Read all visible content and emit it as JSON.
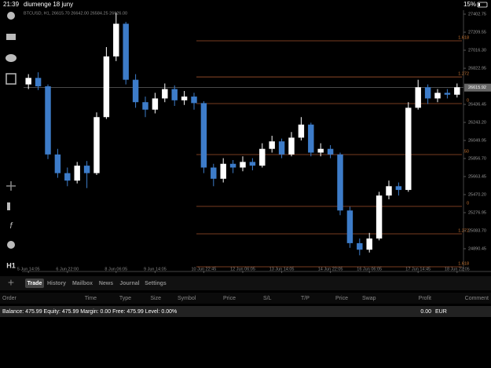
{
  "status_bar": {
    "time": "21:39",
    "date": "diumenge 18 juny",
    "battery": "15%"
  },
  "toolbar": {
    "timeframe": "H1"
  },
  "chart_data": {
    "type": "candlestick",
    "title": "BTCUSD, H1, 26615.70 26642.00 26584.25 26626.00",
    "ylim": [
      24655,
      27445
    ],
    "yticks": [
      27402.75,
      27209.55,
      {
        "value": 27016.3,
        "label": "27016.30"
      },
      26822.95,
      26436.45,
      {
        "value": 26243.2,
        "label": "26243.20"
      },
      26049.95,
      {
        "value": 25856.7,
        "label": "25856.70"
      },
      25663.45,
      {
        "value": 25470.2,
        "label": "25470.20"
      },
      25276.95,
      {
        "value": 25083.7,
        "label": "25083.70"
      },
      24890.45
    ],
    "current_price": 26615.92,
    "categories": [
      "5 Jun 14:05",
      null,
      null,
      null,
      "6 Jun 22:00",
      null,
      null,
      null,
      null,
      "8 Jun 06:05",
      null,
      null,
      null,
      "9 Jun 14:05",
      null,
      null,
      null,
      null,
      "10 Jun 22:45",
      null,
      null,
      null,
      "12 Jun 06:05",
      null,
      null,
      null,
      "13 Jun 14:05",
      null,
      null,
      null,
      null,
      "14 Jun 22:05",
      null,
      null,
      null,
      "16 Jun 06:05",
      null,
      null,
      null,
      null,
      "17 Jun 14:45",
      null,
      null,
      null,
      "18 Jun 22:05"
    ],
    "open": [
      26650,
      26720,
      26630,
      25900,
      25700,
      25620,
      25780,
      25700,
      26300,
      26950,
      27300,
      26700,
      26460,
      26380,
      26500,
      26600,
      26480,
      26520,
      26450,
      25760,
      25640,
      25800,
      25760,
      25820,
      25780,
      25960,
      26040,
      25900,
      26080,
      26220,
      25920,
      25960,
      25900,
      25300,
      24950,
      24880,
      25000,
      25460,
      25560,
      25520,
      26400,
      26620,
      26500,
      26560,
      26540
    ],
    "high": [
      26760,
      26780,
      26650,
      25960,
      25760,
      25820,
      25830,
      26350,
      27050,
      27420,
      27320,
      26760,
      26520,
      26560,
      26660,
      26640,
      26580,
      26560,
      26470,
      25800,
      25860,
      25840,
      25880,
      25860,
      26020,
      26100,
      26070,
      26140,
      26300,
      26240,
      26020,
      26000,
      25920,
      25340,
      25000,
      25060,
      25500,
      25620,
      25600,
      26460,
      26700,
      26650,
      26600,
      26600,
      26660
    ],
    "low": [
      26600,
      26590,
      25850,
      25650,
      25560,
      25590,
      25540,
      25680,
      26280,
      26900,
      26650,
      26400,
      26300,
      26340,
      26460,
      26420,
      26430,
      26380,
      25700,
      25560,
      25600,
      25700,
      25720,
      25730,
      25760,
      25920,
      25860,
      25880,
      26050,
      25880,
      25880,
      25860,
      25250,
      24900,
      24820,
      24850,
      24980,
      25420,
      25460,
      25500,
      26380,
      26440,
      26460,
      26500,
      26510
    ],
    "close": [
      26720,
      26630,
      25900,
      25700,
      25620,
      25780,
      25700,
      26300,
      26950,
      27300,
      26700,
      26460,
      26380,
      26500,
      26600,
      26480,
      26520,
      26450,
      25760,
      25640,
      25800,
      25760,
      25820,
      25780,
      25960,
      26040,
      25900,
      26080,
      26220,
      25920,
      25960,
      25900,
      25300,
      24950,
      24880,
      25000,
      25460,
      25560,
      25520,
      26400,
      26620,
      26500,
      26560,
      26540,
      26620
    ],
    "fib_levels": [
      {
        "label": "1.618",
        "price": 27117
      },
      {
        "label": "1.272",
        "price": 26730
      },
      {
        "label": "0",
        "price": 26445
      },
      {
        "label": ".50",
        "price": 25899
      },
      {
        "label": "0",
        "price": 25344
      },
      {
        "label": "1.272",
        "price": 25050
      },
      {
        "label": "1.618",
        "price": 24697
      }
    ],
    "bull_color": "#ffffff",
    "bear_color": "#3d7cc9",
    "fib_color": "#a0522d",
    "grid": false
  },
  "tabs": [
    "Trade",
    "History",
    "Mailbox",
    "News",
    "Journal",
    "Settings"
  ],
  "active_tab": "Trade",
  "table": {
    "headers": [
      "Order",
      "Time",
      "Type",
      "Size",
      "Symbol",
      "Price",
      "S/L",
      "T/P",
      "Price",
      "Swap",
      "Profit",
      "Comment"
    ]
  },
  "balance": {
    "summary": "Balance: 475.99 Equity: 475.99 Margin: 0.00 Free: 475.99 Level: 0.00%",
    "profit": "0.00",
    "currency": "EUR"
  }
}
